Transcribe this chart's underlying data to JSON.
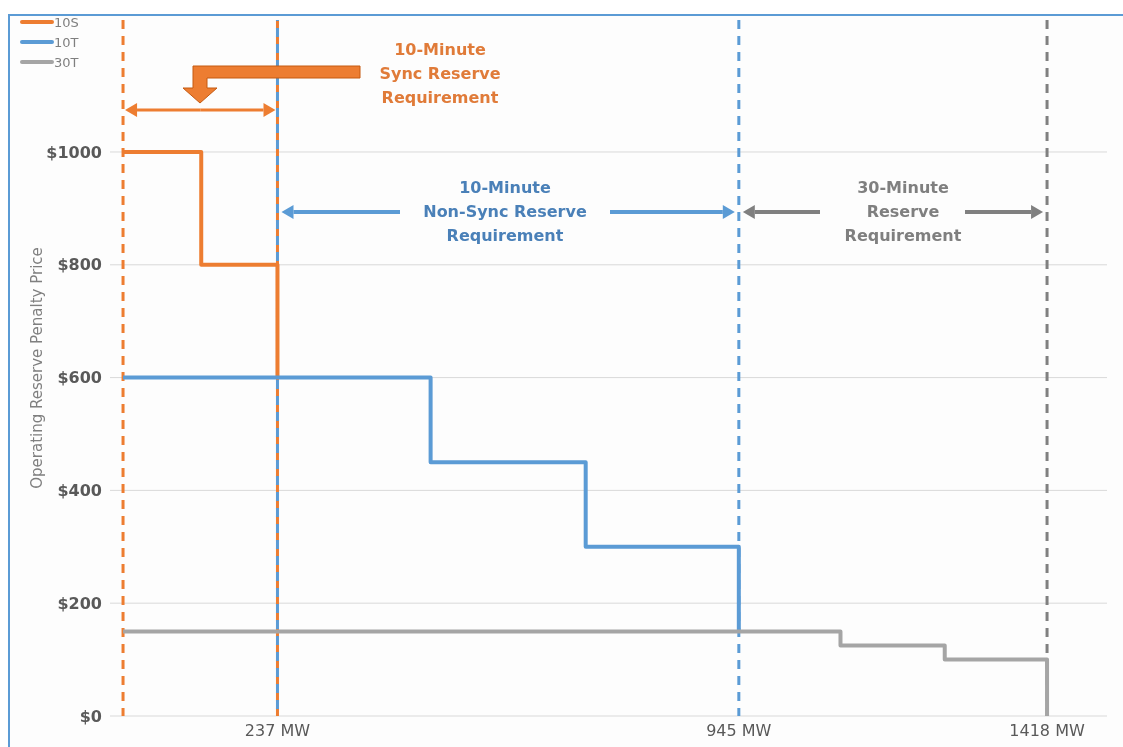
{
  "chart_data": {
    "type": "step",
    "ylabel": "Operating Reserve Penalty Price",
    "series": [
      {
        "name": "10S",
        "color": "#ed7d31",
        "x": [
          0,
          120,
          237,
          237
        ],
        "values": [
          1000,
          800,
          800,
          600
        ]
      },
      {
        "name": "10T",
        "color": "#5b9bd5",
        "x": [
          0,
          472,
          710,
          945,
          945
        ],
        "values": [
          600,
          450,
          300,
          300,
          150
        ]
      },
      {
        "name": "30T",
        "color": "#a5a5a5",
        "x": [
          0,
          1101,
          1261,
          1418,
          1418
        ],
        "values": [
          150,
          125,
          100,
          100,
          0
        ]
      }
    ],
    "xlim": [
      -20,
      1510
    ],
    "ylim": [
      0,
      1234
    ],
    "xticks": [
      {
        "value": 237,
        "label": "237 MW"
      },
      {
        "value": 945,
        "label": "945 MW"
      },
      {
        "value": 1418,
        "label": "1418 MW"
      }
    ],
    "yticks": [
      {
        "value": 0,
        "label": "$0"
      },
      {
        "value": 200,
        "label": "$200"
      },
      {
        "value": 400,
        "label": "$400"
      },
      {
        "value": 600,
        "label": "$600"
      },
      {
        "value": 800,
        "label": "$800"
      },
      {
        "value": 1000,
        "label": "$1000"
      }
    ],
    "ref_lines": [
      {
        "axis": "x",
        "value": 0,
        "color": "#ed7d31",
        "line_style": "dashed"
      },
      {
        "axis": "x",
        "value": 237,
        "color": "#ed7d31",
        "line_style": "dashed"
      },
      {
        "axis": "x",
        "value": 237,
        "color": "#5b9bd5",
        "line_style": "dashed"
      },
      {
        "axis": "x",
        "value": 945,
        "color": "#5b9bd5",
        "line_style": "dashed"
      },
      {
        "axis": "x",
        "value": 1418,
        "color": "#808080",
        "line_style": "dashed"
      }
    ],
    "annotations": [
      "10-Minute\nSync Reserve\nRequirement",
      "10-Minute\nNon-Sync Reserve\nRequirement",
      "30-Minute\nReserve\nRequirement"
    ],
    "grid": "y",
    "legend": "top left",
    "line_style": "solid",
    "marker": "none"
  }
}
